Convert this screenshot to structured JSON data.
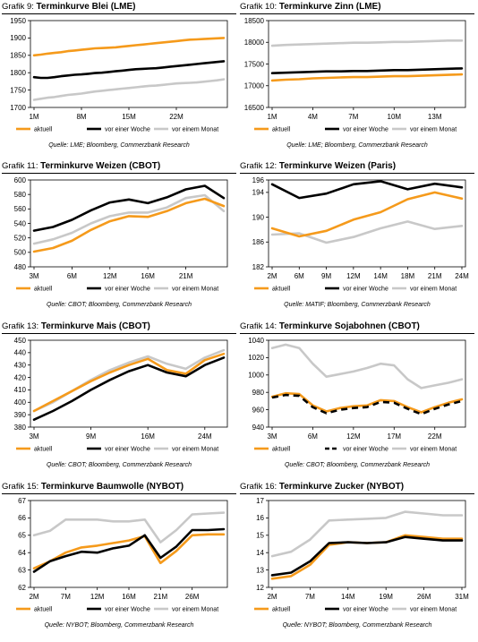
{
  "colors": {
    "aktuell": "#f59a1b",
    "woche": "#000000",
    "monat": "#c8c8c8"
  },
  "panels": [
    {
      "grafik": "Grafik 9:",
      "name": "Terminkurve Blei (LME)",
      "source": "Quelle: LME; Bloomberg, Commerzbank Research",
      "legend": [
        "aktuell",
        "vor einer Woche",
        "vor einem Monat"
      ],
      "chart_data": {
        "type": "line",
        "title": "Terminkurve Blei (LME)",
        "x_ticks": [
          "1M",
          "8M",
          "15M",
          "22M"
        ],
        "n_points": 29,
        "tick_indices": [
          0,
          7,
          14,
          21
        ],
        "ylim": [
          1700,
          1950
        ],
        "y_ticks": [
          1700,
          1750,
          1800,
          1850,
          1900,
          1950
        ],
        "series": [
          {
            "name": "aktuell",
            "values": [
              1850,
              1852,
              1855,
              1857,
              1859,
              1862,
              1864,
              1866,
              1868,
              1870,
              1871,
              1872,
              1873,
              1875,
              1877,
              1879,
              1881,
              1883,
              1885,
              1887,
              1889,
              1891,
              1893,
              1895,
              1896,
              1897,
              1898,
              1899,
              1900
            ]
          },
          {
            "name": "vor einer Woche",
            "values": [
              1787,
              1785,
              1785,
              1787,
              1790,
              1792,
              1794,
              1795,
              1797,
              1799,
              1800,
              1802,
              1804,
              1806,
              1808,
              1810,
              1811,
              1812,
              1813,
              1815,
              1817,
              1819,
              1821,
              1823,
              1825,
              1827,
              1829,
              1831,
              1833
            ]
          },
          {
            "name": "vor einem Monat",
            "values": [
              1722,
              1725,
              1728,
              1730,
              1733,
              1736,
              1738,
              1740,
              1743,
              1746,
              1748,
              1750,
              1752,
              1754,
              1756,
              1758,
              1760,
              1762,
              1763,
              1765,
              1767,
              1769,
              1770,
              1771,
              1772,
              1774,
              1776,
              1778,
              1781
            ]
          }
        ]
      }
    },
    {
      "grafik": "Grafik 10:",
      "name": "Terminkurve Zinn (LME)",
      "source": "Quelle: LME; Bloomberg, Commerzbank Research",
      "legend": [
        "aktuell",
        "vor einer Woche",
        "vor einem Monat"
      ],
      "chart_data": {
        "type": "line",
        "title": "Terminkurve Zinn (LME)",
        "x_ticks": [
          "1M",
          "4M",
          "7M",
          "10M",
          "13M"
        ],
        "n_points": 15,
        "tick_indices": [
          0,
          3,
          6,
          9,
          12
        ],
        "ylim": [
          16500,
          18500
        ],
        "y_ticks": [
          16500,
          17000,
          17500,
          18000,
          18500
        ],
        "series": [
          {
            "name": "aktuell",
            "values": [
              17120,
              17140,
              17150,
              17170,
              17180,
              17190,
              17200,
              17200,
              17210,
              17220,
              17220,
              17230,
              17240,
              17250,
              17260
            ]
          },
          {
            "name": "vor einer Woche",
            "values": [
              17290,
              17300,
              17310,
              17320,
              17330,
              17330,
              17340,
              17340,
              17350,
              17360,
              17360,
              17370,
              17380,
              17390,
              17400
            ]
          },
          {
            "name": "vor einem Monat",
            "values": [
              17920,
              17940,
              17950,
              17960,
              17970,
              17980,
              17990,
              17990,
              18000,
              18010,
              18010,
              18020,
              18030,
              18040,
              18040
            ]
          }
        ]
      }
    },
    {
      "grafik": "Grafik 11:",
      "name": "Terminkurve Weizen (CBOT)",
      "source": "Quelle: CBOT; Bloomberg, Commerzbank Research",
      "legend": [
        "aktuell",
        "vor einer Woche",
        "vor einem Monat"
      ],
      "chart_data": {
        "type": "line",
        "title": "Terminkurve Weizen (CBOT)",
        "x_ticks": [
          "3M",
          "6M",
          "12M",
          "16M",
          "21M"
        ],
        "n_points": 11,
        "tick_indices": [
          0,
          2,
          4,
          6,
          8
        ],
        "ylim": [
          480,
          600
        ],
        "y_ticks": [
          480,
          500,
          520,
          540,
          560,
          580,
          600
        ],
        "series": [
          {
            "name": "aktuell",
            "values": [
              501,
              506,
              516,
              531,
              543,
              550,
              549,
              557,
              568,
              574,
              564
            ]
          },
          {
            "name": "vor einer Woche",
            "values": [
              530,
              535,
              545,
              558,
              569,
              573,
              568,
              576,
              587,
              592,
              575
            ]
          },
          {
            "name": "vor einem Monat",
            "values": [
              512,
              518,
              527,
              540,
              550,
              555,
              555,
              562,
              575,
              579,
              557
            ]
          }
        ]
      }
    },
    {
      "grafik": "Grafik 12:",
      "name": "Terminkurve Weizen (Paris)",
      "source": "Quelle: MATIF; Bloomberg, Commerzbank Research",
      "legend": [
        "aktuell",
        "vor einer Woche",
        "vor einem Monat"
      ],
      "chart_data": {
        "type": "line",
        "title": "Terminkurve Weizen (Paris)",
        "x_ticks": [
          "2M",
          "6M",
          "9M",
          "12M",
          "14M",
          "18M",
          "21M",
          "24M"
        ],
        "n_points": 8,
        "tick_indices": [
          0,
          1,
          2,
          3,
          4,
          5,
          6,
          7
        ],
        "ylim": [
          182,
          196
        ],
        "y_ticks": [
          182,
          186,
          190,
          194,
          196
        ],
        "series": [
          {
            "name": "aktuell",
            "values": [
              188.2,
              186.9,
              187.8,
              189.6,
              190.8,
              192.9,
              194.0,
              193.0
            ]
          },
          {
            "name": "vor einer Woche",
            "values": [
              195.3,
              193.1,
              193.8,
              195.3,
              195.8,
              194.5,
              195.4,
              194.8
            ]
          },
          {
            "name": "vor einem Monat",
            "values": [
              187.2,
              187.4,
              185.9,
              186.8,
              188.2,
              189.3,
              188.1,
              188.6
            ]
          }
        ]
      }
    },
    {
      "grafik": "Grafik 13:",
      "name": "Terminkurve Mais (CBOT)",
      "source": "Quelle: CBOT; Bloomberg, Commerzbank Research",
      "legend": [
        "aktuell",
        "vor einer Woche",
        "vor einem Monat"
      ],
      "chart_data": {
        "type": "line",
        "title": "Terminkurve Mais (CBOT)",
        "x_ticks": [
          "3M",
          "9M",
          "16M",
          "24M"
        ],
        "n_points": 11,
        "tick_indices": [
          0,
          3,
          6,
          9
        ],
        "ylim": [
          380,
          450
        ],
        "y_ticks": [
          380,
          390,
          400,
          410,
          420,
          430,
          440,
          450
        ],
        "series": [
          {
            "name": "aktuell",
            "values": [
              393,
              401,
              409,
              417,
              424,
              430,
              435,
              426,
              423,
              434,
              439
            ]
          },
          {
            "name": "vor einer Woche",
            "values": [
              386,
              393,
              401,
              410,
              418,
              425,
              430,
              424,
              421,
              430,
              436
            ]
          },
          {
            "name": "vor einem Monat",
            "values": [
              393,
              400,
              409,
              418,
              426,
              432,
              437,
              431,
              427,
              436,
              442
            ]
          }
        ]
      }
    },
    {
      "grafik": "Grafik 14:",
      "name": "Terminkurve Sojabohnen (CBOT)",
      "source": "Quelle: CBOT; Bloomberg, Commerzbank Research",
      "legend": [
        "aktuell",
        "vor einer Woche",
        "vor einem Monat"
      ],
      "chart_data": {
        "type": "line",
        "title": "Terminkurve Sojabohnen (CBOT)",
        "x_ticks": [
          "3M",
          "6M",
          "12M",
          "17M",
          "22M"
        ],
        "n_points": 15,
        "tick_indices": [
          0,
          3,
          6,
          9,
          12
        ],
        "ylim": [
          940,
          1040
        ],
        "y_ticks": [
          940,
          960,
          980,
          1000,
          1020,
          1040
        ],
        "series": [
          {
            "name": "aktuell",
            "values": [
              975,
              979,
              978,
              965,
              958,
              962,
              964,
              965,
              971,
              970,
              963,
              957,
              963,
              968,
              972
            ]
          },
          {
            "name": "vor einer Woche",
            "values": [
              974,
              977,
              976,
              963,
              956,
              960,
              962,
              963,
              969,
              968,
              961,
              955,
              961,
              966,
              970
            ]
          },
          {
            "name": "vor einem Monat",
            "values": [
              1031,
              1035,
              1031,
              1013,
              998,
              1001,
              1004,
              1008,
              1013,
              1011,
              995,
              985,
              988,
              991,
              995
            ]
          }
        ]
      }
    },
    {
      "grafik": "Grafik 15:",
      "name": "Terminkurve Baumwolle (NYBOT)",
      "source": "Quelle: NYBOT; Bloomberg, Commerzbank Research",
      "legend": [
        "aktuell",
        "vor einer Woche",
        "vor einem Monat"
      ],
      "chart_data": {
        "type": "line",
        "title": "Terminkurve Baumwolle (NYBOT)",
        "x_ticks": [
          "2M",
          "7M",
          "12M",
          "16M",
          "21M",
          "26M"
        ],
        "n_points": 13,
        "tick_indices": [
          0,
          2,
          4,
          6,
          8,
          10
        ],
        "ylim": [
          62,
          67
        ],
        "y_ticks": [
          62,
          63,
          64,
          65,
          66,
          67
        ],
        "series": [
          {
            "name": "aktuell",
            "values": [
              63.1,
              63.5,
              64.0,
              64.3,
              64.4,
              64.55,
              64.7,
              64.95,
              63.4,
              64.1,
              65.0,
              65.05,
              65.05
            ]
          },
          {
            "name": "vor einer Woche",
            "values": [
              62.9,
              63.5,
              63.8,
              64.05,
              64.0,
              64.25,
              64.4,
              65.0,
              63.7,
              64.35,
              65.3,
              65.3,
              65.35
            ]
          },
          {
            "name": "vor einem Monat",
            "values": [
              65.0,
              65.25,
              65.9,
              65.9,
              65.9,
              65.8,
              65.8,
              65.9,
              64.6,
              65.3,
              66.2,
              66.25,
              66.3
            ]
          }
        ]
      }
    },
    {
      "grafik": "Grafik 16:",
      "name": "Terminkurve Zucker (NYBOT)",
      "source": "Quelle: NYBOT; Bloomberg, Commerzbank Research",
      "legend": [
        "aktuell",
        "vor einer Woche",
        "vor einem Monat"
      ],
      "chart_data": {
        "type": "line",
        "title": "Terminkurve Zucker (NYBOT)",
        "x_ticks": [
          "2M",
          "7M",
          "14M",
          "19M",
          "26M",
          "31M"
        ],
        "n_points": 11,
        "tick_indices": [
          0,
          2,
          4,
          6,
          8,
          10
        ],
        "ylim": [
          12.0,
          17.0
        ],
        "y_ticks": [
          12.0,
          13.0,
          14.0,
          15.0,
          16.0,
          17.0
        ],
        "series": [
          {
            "name": "aktuell",
            "values": [
              12.5,
              12.65,
              13.3,
              14.45,
              14.6,
              14.55,
              14.6,
              15.0,
              14.9,
              14.8,
              14.8
            ]
          },
          {
            "name": "vor einer Woche",
            "values": [
              12.7,
              12.85,
              13.5,
              14.55,
              14.6,
              14.55,
              14.6,
              14.9,
              14.8,
              14.7,
              14.7
            ]
          },
          {
            "name": "vor einem Monat",
            "values": [
              13.8,
              14.05,
              14.75,
              15.85,
              15.9,
              15.95,
              16.0,
              16.35,
              16.25,
              16.15,
              16.15
            ]
          }
        ]
      }
    }
  ]
}
